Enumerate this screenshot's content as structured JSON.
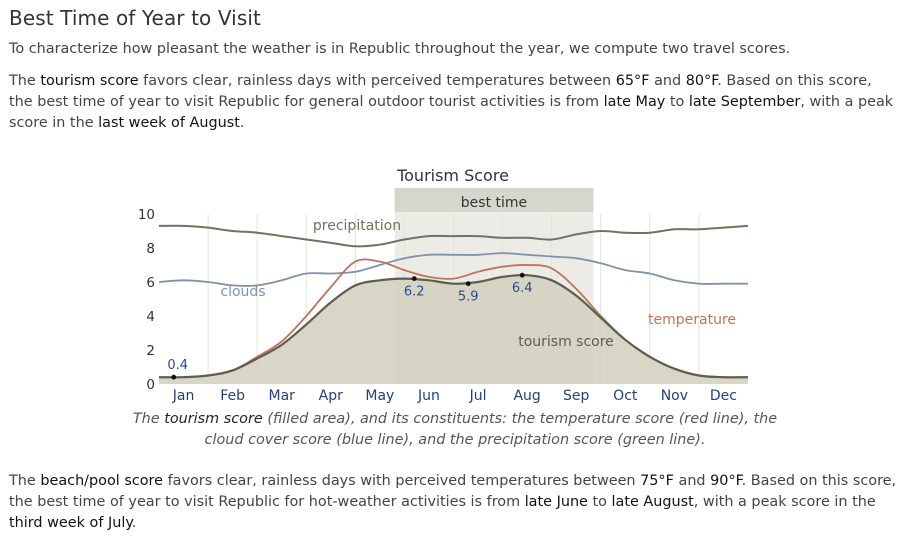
{
  "heading": "Best Time of Year to Visit",
  "intro": "To characterize how pleasant the weather is in Republic throughout the year, we compute two travel scores.",
  "tourism_paragraph": {
    "t1": "The ",
    "score_name": "tourism score",
    "t2": " favors clear, rainless days with perceived temperatures between ",
    "temp_low": "65°F",
    "t3": " and ",
    "temp_high": "80°F",
    "t4": ". Based on this score, the best time of year to visit Republic for general outdoor tourist activities is from ",
    "start": "late May",
    "t5": " to ",
    "end": "late September",
    "t6": ", with a peak score in the ",
    "peak": "last week of August",
    "t7": "."
  },
  "caption": {
    "c1": "The ",
    "score_name": "tourism score",
    "c2": " (filled area), and its constituents: the temperature score (red line), the cloud cover score (blue line), and the precipitation score (green line)."
  },
  "beach_paragraph": {
    "t1": "The ",
    "score_name": "beach/pool score",
    "t2": " favors clear, rainless days with perceived temperatures between ",
    "temp_low": "75°F",
    "t3": " and ",
    "temp_high": "90°F",
    "t4": ". Based on this score, the best time of year to visit Republic for hot-weather activities is from ",
    "start": "late June",
    "t5": " to ",
    "end": "late August",
    "t6": ", with a peak score in the ",
    "peak": "third week of July",
    "t7": "."
  },
  "colors": {
    "tourism_fill": "#d4d2c2",
    "tourism_line": "#5e5d4e",
    "temperature": "#c2735b",
    "clouds": "#7e93ab",
    "precipitation": "#6f745f",
    "best_time_band": "#d6d6cc",
    "month_labels": "#243f80",
    "marker_labels": "#2a4b8d"
  },
  "chart_data": {
    "type": "area",
    "title": "Tourism Score",
    "band_label": "best time",
    "band_range": [
      4.8,
      8.85
    ],
    "months": [
      "Jan",
      "Feb",
      "Mar",
      "Apr",
      "May",
      "Jun",
      "Jul",
      "Aug",
      "Sep",
      "Oct",
      "Nov",
      "Dec"
    ],
    "x_range": [
      0,
      12
    ],
    "ylim": [
      0,
      10
    ],
    "yticks": [
      "0",
      "2",
      "4",
      "6",
      "8",
      "10"
    ],
    "x": [
      0,
      0.5,
      1,
      1.5,
      2,
      2.5,
      3,
      3.5,
      4,
      4.5,
      5,
      5.5,
      6,
      6.5,
      7,
      7.5,
      8,
      8.5,
      9,
      9.5,
      10,
      10.5,
      11,
      11.5,
      12
    ],
    "series": [
      {
        "name": "tourism score",
        "values": [
          0.4,
          0.4,
          0.5,
          0.8,
          1.5,
          2.3,
          3.5,
          4.8,
          5.8,
          6.1,
          6.2,
          6.1,
          5.9,
          6.0,
          6.3,
          6.4,
          6.1,
          5.2,
          3.9,
          2.6,
          1.6,
          0.9,
          0.5,
          0.4,
          0.4
        ]
      },
      {
        "name": "temperature",
        "values": [
          0.4,
          0.4,
          0.5,
          0.8,
          1.6,
          2.5,
          4.0,
          5.7,
          7.2,
          7.2,
          6.7,
          6.3,
          6.2,
          6.6,
          6.9,
          7.0,
          6.8,
          5.6,
          4.0,
          2.6,
          1.6,
          0.9,
          0.5,
          0.4,
          0.4
        ]
      },
      {
        "name": "clouds",
        "values": [
          6.0,
          6.1,
          6.0,
          5.8,
          5.8,
          6.1,
          6.5,
          6.5,
          6.6,
          7.0,
          7.4,
          7.6,
          7.6,
          7.6,
          7.7,
          7.6,
          7.5,
          7.4,
          7.1,
          6.7,
          6.5,
          6.1,
          5.9,
          5.9,
          5.9
        ]
      },
      {
        "name": "precipitation",
        "values": [
          9.3,
          9.3,
          9.2,
          9.0,
          8.9,
          8.7,
          8.5,
          8.3,
          8.1,
          8.2,
          8.5,
          8.7,
          8.7,
          8.7,
          8.6,
          8.6,
          8.5,
          8.8,
          9.0,
          8.9,
          8.9,
          9.1,
          9.1,
          9.2,
          9.3
        ]
      }
    ],
    "point_markers": [
      {
        "x": 0.3,
        "y": 0.4,
        "label": "0.4"
      },
      {
        "x": 5.2,
        "y": 6.2,
        "label": "6.2"
      },
      {
        "x": 6.3,
        "y": 5.9,
        "label": "5.9"
      },
      {
        "x": 7.4,
        "y": 6.4,
        "label": "6.4"
      }
    ],
    "series_annotations": [
      {
        "text": "precipitation",
        "series": "precipitation"
      },
      {
        "text": "clouds",
        "series": "clouds"
      },
      {
        "text": "temperature",
        "series": "temperature"
      },
      {
        "text": "tourism score",
        "series": "tourism score"
      }
    ],
    "grid": "vertical"
  }
}
